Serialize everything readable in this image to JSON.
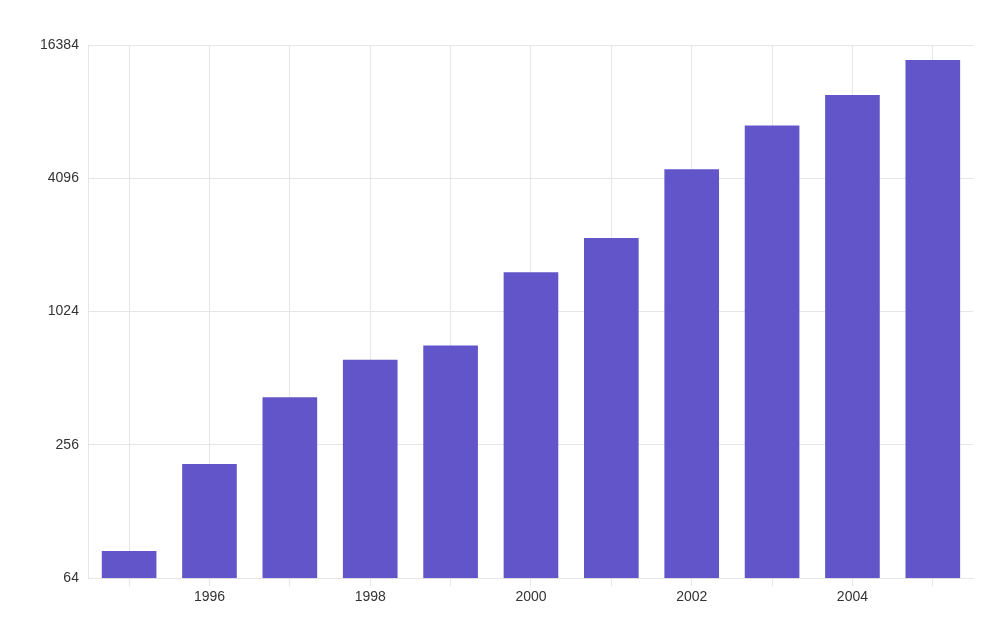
{
  "chart_data": {
    "type": "bar",
    "categories": [
      null,
      "1996",
      null,
      "1998",
      null,
      "2000",
      null,
      "2002",
      null,
      "2004",
      null
    ],
    "values": [
      85,
      210,
      420,
      620,
      720,
      1540,
      2200,
      4500,
      7100,
      9750,
      14000
    ],
    "color": "#6155c9",
    "ylim": [
      64,
      16384
    ],
    "yticks": [
      64,
      256,
      1024,
      4096,
      16384
    ],
    "log": "y",
    "grid": true
  }
}
